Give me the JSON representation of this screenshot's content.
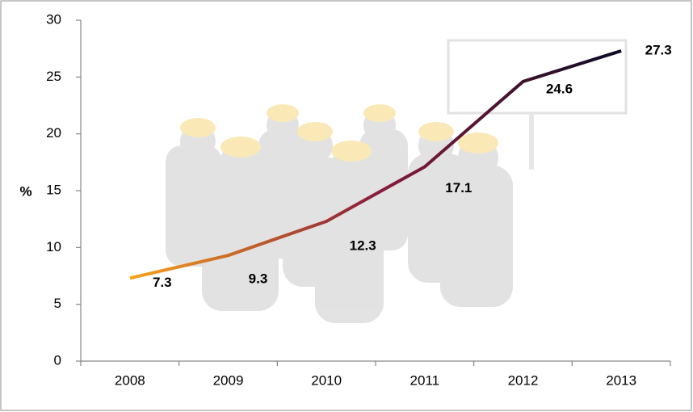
{
  "chart_data": {
    "type": "line",
    "y_label": "%",
    "categories": [
      "2008",
      "2009",
      "2010",
      "2011",
      "2012",
      "2013"
    ],
    "values": [
      7.3,
      9.3,
      12.3,
      17.1,
      24.6,
      27.3
    ],
    "color": [
      "#f7a21b",
      "#8a1c3c",
      "#0b0b24"
    ],
    "ylim": [
      0,
      30
    ],
    "yticks": [
      0,
      5,
      10,
      15,
      20,
      25,
      30
    ],
    "grid": false
  }
}
